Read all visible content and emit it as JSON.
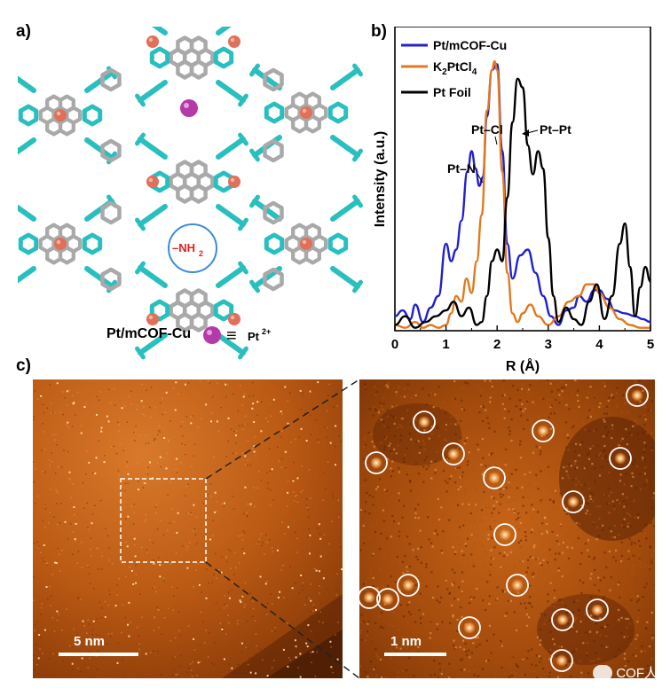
{
  "panel_a": {
    "letter": "a)",
    "caption": "Pt/mCOF-Cu",
    "equiv_symbol": "≡",
    "legend_label": "Pt",
    "legend_superscript": "2+",
    "group_label": "–NH",
    "group_subscript": "2",
    "colors": {
      "pt_ion": "#b43aa8",
      "cu_atom": "#e0705a",
      "framework_cyan": "#2abfbf",
      "framework_gray": "#a9a9a9",
      "amine_circle": "#3a8bd8",
      "amine_text": "#e02020"
    }
  },
  "panel_b": {
    "letter": "b)",
    "annotations": {
      "pt_n": "Pt–N",
      "pt_cl": "Pt–Cl",
      "pt_pt": "Pt–Pt"
    },
    "legend_k2ptcl4_parts": [
      "K",
      "2",
      "PtCl",
      "4"
    ]
  },
  "chart_data": {
    "type": "line",
    "xlabel": "R (Å)",
    "ylabel": "Intensity (a.u.)",
    "xlim": [
      0,
      5
    ],
    "xticks": [
      "0",
      "1",
      "2",
      "3",
      "4",
      "5"
    ],
    "ylim": [
      0,
      1.05
    ],
    "grid": false,
    "legend_position": "top-left",
    "series": [
      {
        "name": "Pt/mCOF-Cu",
        "color": "#2020d0",
        "x": [
          0.0,
          0.15,
          0.3,
          0.4,
          0.55,
          0.7,
          0.85,
          1.0,
          1.1,
          1.2,
          1.3,
          1.42,
          1.5,
          1.58,
          1.65,
          1.72,
          1.8,
          1.9,
          2.0,
          2.1,
          2.2,
          2.3,
          2.45,
          2.6,
          2.75,
          2.9,
          3.05,
          3.2,
          3.35,
          3.5,
          3.6,
          3.75,
          3.9,
          4.0,
          4.15,
          4.3,
          4.5,
          4.7,
          4.85,
          5.0
        ],
        "y": [
          0.05,
          0.07,
          0.04,
          0.09,
          0.03,
          0.08,
          0.12,
          0.3,
          0.24,
          0.28,
          0.38,
          0.55,
          0.62,
          0.56,
          0.5,
          0.53,
          0.74,
          0.9,
          0.92,
          0.62,
          0.3,
          0.18,
          0.26,
          0.28,
          0.2,
          0.12,
          0.05,
          0.02,
          0.07,
          0.08,
          0.12,
          0.1,
          0.14,
          0.14,
          0.11,
          0.07,
          0.06,
          0.05,
          0.04,
          0.03
        ]
      },
      {
        "name": "K2PtCl4",
        "color": "#e07a20",
        "x": [
          0.0,
          0.2,
          0.4,
          0.55,
          0.7,
          0.85,
          1.0,
          1.1,
          1.2,
          1.3,
          1.4,
          1.5,
          1.6,
          1.7,
          1.8,
          1.9,
          1.95,
          2.0,
          2.1,
          2.2,
          2.3,
          2.4,
          2.5,
          2.65,
          2.8,
          3.0,
          3.2,
          3.4,
          3.6,
          3.75,
          3.9,
          4.0,
          4.2,
          4.4,
          4.6,
          4.8,
          5.0
        ],
        "y": [
          0.02,
          0.01,
          0.03,
          0.01,
          0.02,
          0.01,
          0.02,
          0.06,
          0.12,
          0.1,
          0.18,
          0.13,
          0.24,
          0.4,
          0.76,
          0.9,
          0.93,
          0.9,
          0.55,
          0.2,
          0.06,
          0.03,
          0.06,
          0.09,
          0.05,
          0.02,
          0.05,
          0.1,
          0.12,
          0.16,
          0.16,
          0.13,
          0.08,
          0.04,
          0.02,
          0.01,
          0.01
        ]
      },
      {
        "name": "Pt Foil",
        "color": "#000000",
        "x": [
          0.0,
          0.2,
          0.4,
          0.6,
          0.8,
          1.0,
          1.15,
          1.3,
          1.45,
          1.6,
          1.7,
          1.8,
          1.9,
          2.0,
          2.1,
          2.2,
          2.3,
          2.4,
          2.5,
          2.6,
          2.7,
          2.8,
          2.9,
          3.0,
          3.1,
          3.2,
          3.35,
          3.5,
          3.65,
          3.8,
          3.95,
          4.1,
          4.25,
          4.4,
          4.5,
          4.6,
          4.7,
          4.8,
          4.9,
          5.0
        ],
        "y": [
          0.02,
          0.05,
          0.01,
          0.03,
          0.05,
          0.07,
          0.1,
          0.05,
          0.08,
          0.02,
          0.03,
          0.12,
          0.24,
          0.28,
          0.24,
          0.46,
          0.72,
          0.87,
          0.84,
          0.64,
          0.54,
          0.62,
          0.56,
          0.32,
          0.12,
          0.03,
          0.08,
          0.04,
          0.02,
          0.1,
          0.16,
          0.04,
          0.12,
          0.3,
          0.37,
          0.22,
          0.05,
          0.15,
          0.22,
          0.17
        ]
      }
    ]
  },
  "panel_c": {
    "letter": "c)",
    "scalebar_left": "5 nm",
    "scalebar_right": "1 nm",
    "colors": {
      "stem_dark": "#5a2206",
      "stem_mid": "#b5500f",
      "stem_bright": "#f2a85a",
      "stem_spot": "#ffe0b0",
      "circle": "#ffffff"
    }
  },
  "watermark": {
    "text": "COF人"
  }
}
